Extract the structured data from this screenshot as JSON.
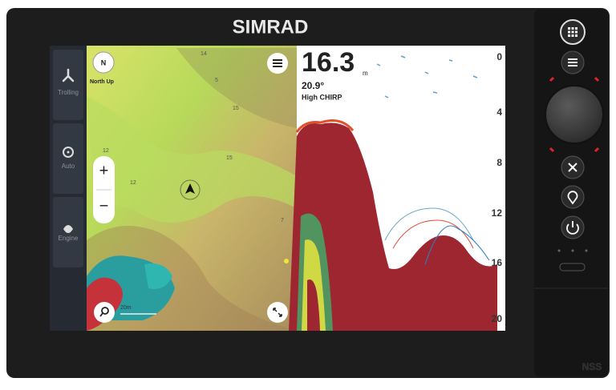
{
  "header": {
    "brand": "SIMRAD"
  },
  "sidebar": {
    "items": [
      {
        "label": "Trolling"
      },
      {
        "label": "Auto"
      },
      {
        "label": "Engine"
      }
    ]
  },
  "map": {
    "compass": "N",
    "orientation": "North Up",
    "zoom_in": "+",
    "zoom_out": "−",
    "scale": "20m",
    "depth_labels": [
      "14",
      "5",
      "15",
      "12",
      "15",
      "12",
      "7"
    ]
  },
  "sonar": {
    "depth": "16.3",
    "depth_unit": "m",
    "temperature": "20.9°",
    "mode": "High CHIRP",
    "scale": [
      "0",
      "4",
      "8",
      "12",
      "16",
      "20"
    ]
  },
  "footer": {
    "model": "NSS"
  }
}
